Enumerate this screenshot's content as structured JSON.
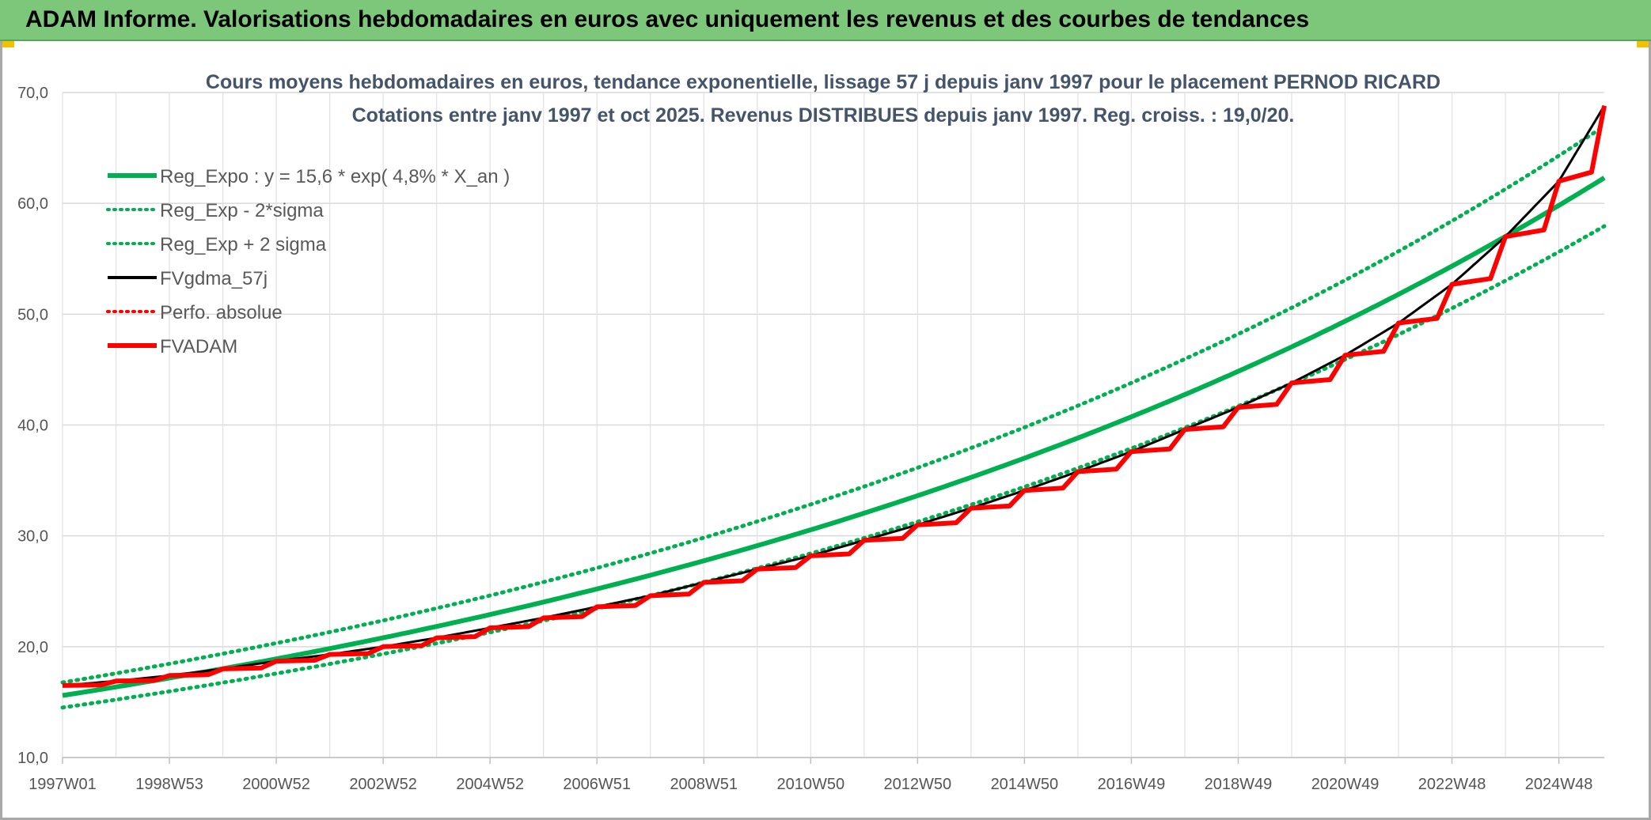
{
  "header": {
    "title": "ADAM Informe. Valorisations hebdomadaires en euros avec uniquement les revenus et des courbes de tendances"
  },
  "chart_data": {
    "type": "line",
    "title_lines": [
      "Cours moyens hebdomadaires en euros, tendance exponentielle, lissage 57 j depuis janv 1997 pour le placement PERNOD RICARD",
      "Cotations entre janv 1997 et oct 2025. Revenus DISTRIBUES depuis janv 1997. Reg. croiss. : 19,0/20."
    ],
    "x_range_years": [
      1997.0,
      2025.85
    ],
    "ylim": [
      10,
      70
    ],
    "y_ticks": [
      "10,0",
      "20,0",
      "30,0",
      "40,0",
      "50,0",
      "60,0",
      "70,0"
    ],
    "y_tick_values": [
      10,
      20,
      30,
      40,
      50,
      60,
      70
    ],
    "x_ticks": [
      "1997W01",
      "1998W53",
      "2000W52",
      "2002W52",
      "2004W52",
      "2006W51",
      "2008W51",
      "2010W50",
      "2012W50",
      "2014W50",
      "2016W49",
      "2018W49",
      "2020W49",
      "2022W48",
      "2024W48"
    ],
    "x_tick_years": [
      1997.0,
      1999.0,
      2001.0,
      2003.0,
      2005.0,
      2007.0,
      2009.0,
      2011.0,
      2013.0,
      2015.0,
      2017.0,
      2019.0,
      2021.0,
      2023.0,
      2025.0
    ],
    "legend": [
      {
        "label": "Reg_Expo : y = 15,6 * exp( 4,8% *  X_an )",
        "color": "#00b050",
        "style": "solid-thick"
      },
      {
        "label": "Reg_Exp - 2*sigma",
        "color": "#00b050",
        "style": "dotted"
      },
      {
        "label": "Reg_Exp + 2 sigma",
        "color": "#00b050",
        "style": "dotted"
      },
      {
        "label": "FVgdma_57j",
        "color": "#000000",
        "style": "solid"
      },
      {
        "label": "Perfo. absolue",
        "color": "#ff0000",
        "style": "dotted"
      },
      {
        "label": "FVADAM",
        "color": "#ff0000",
        "style": "solid-thick"
      }
    ],
    "regression": {
      "a": 15.6,
      "rate": 0.048,
      "lower_factor": 0.93,
      "upper_factor": 1.075
    },
    "fvadam": {
      "x": [
        1997.0,
        1998.0,
        1999.0,
        2000.0,
        2001.0,
        2002.0,
        2003.0,
        2004.0,
        2005.0,
        2006.0,
        2007.0,
        2008.0,
        2009.0,
        2010.0,
        2011.0,
        2012.0,
        2013.0,
        2014.0,
        2015.0,
        2016.0,
        2017.0,
        2018.0,
        2019.0,
        2020.0,
        2021.0,
        2022.0,
        2023.0,
        2024.0,
        2025.0,
        2025.85
      ],
      "y": [
        16.5,
        16.9,
        17.4,
        18.0,
        18.7,
        19.3,
        20.0,
        20.8,
        21.7,
        22.6,
        23.6,
        24.6,
        25.8,
        27.0,
        28.2,
        29.6,
        31.0,
        32.5,
        34.1,
        35.8,
        37.6,
        39.6,
        41.6,
        43.8,
        46.3,
        49.2,
        52.7,
        57.0,
        62.0,
        68.8
      ]
    }
  }
}
